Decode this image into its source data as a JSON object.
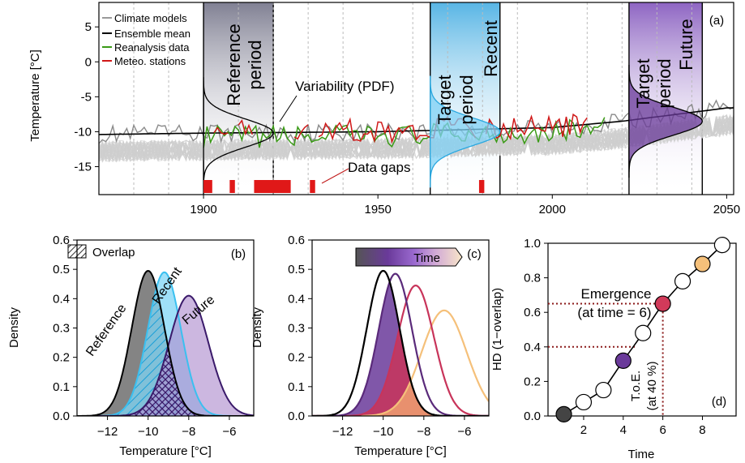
{
  "panels": {
    "a": {
      "label": "(a)"
    },
    "b": {
      "label": "(b)"
    },
    "c": {
      "label": "(c)"
    },
    "d": {
      "label": "(d)"
    }
  },
  "legend_a": [
    {
      "label": "Climate models",
      "color": "#9a9a9a"
    },
    {
      "label": "Ensemble mean",
      "color": "#000000"
    },
    {
      "label": "Reanalysis data",
      "color": "#3a9a16"
    },
    {
      "label": "Meteo. stations",
      "color": "#d01818"
    }
  ],
  "annotations_a": {
    "reference_period": [
      "Reference",
      "period"
    ],
    "target_recent": [
      "Target",
      "period",
      "Recent"
    ],
    "target_future": [
      "Target",
      "period",
      "Future"
    ],
    "variability": "Variability (PDF)",
    "data_gaps": "Data gaps"
  },
  "legend_b": {
    "overlap": "Overlap"
  },
  "labels_b": {
    "reference": "Reference",
    "recent": "Recent",
    "future": "Future"
  },
  "legend_c": {
    "time": "Time"
  },
  "annotations_d": {
    "emergence": [
      "Emergence",
      "(at time = 6)"
    ],
    "toe": [
      "T.o.E.",
      "(at 40 %)"
    ]
  },
  "colors": {
    "reference": "#666666",
    "recent": "#4cc4ee",
    "future": "#5a2a7a",
    "reanalysis": "#3a9a16",
    "stations": "#d01818",
    "emergence_text": "#8b1a1a"
  },
  "chart_data": [
    {
      "panel": "a",
      "type": "line",
      "xlabel": "",
      "ylabel": "Temperature [°C]",
      "xlim": [
        1870,
        2052
      ],
      "ylim": [
        -19,
        8.5
      ],
      "xticks": [
        1900,
        1950,
        2000,
        2050
      ],
      "yticks": [
        5,
        0,
        -5,
        -10,
        -15
      ],
      "series": [
        {
          "name": "Climate models",
          "values_range": [
            -15,
            -7
          ]
        },
        {
          "name": "Ensemble mean",
          "x": [
            1870,
            1900,
            1950,
            2000,
            2020,
            2050
          ],
          "y": [
            -10.4,
            -10.2,
            -10.0,
            -9.4,
            -8.5,
            -6.6
          ]
        },
        {
          "name": "Reanalysis data",
          "x_range": [
            1900,
            2015
          ]
        },
        {
          "name": "Meteo. stations",
          "x_range": [
            1900,
            2010
          ]
        }
      ],
      "periods": [
        {
          "name": "Reference period",
          "x": [
            1900,
            1920
          ]
        },
        {
          "name": "Target period Recent",
          "x": [
            1965,
            1985
          ]
        },
        {
          "name": "Target period Future",
          "x": [
            2022,
            2043
          ]
        }
      ],
      "data_gaps": [
        [
          1900,
          1902.5
        ],
        [
          1907.5,
          1909
        ],
        [
          1914.5,
          1925
        ],
        [
          1930.5,
          1932
        ],
        [
          1979,
          1980.5
        ]
      ]
    },
    {
      "panel": "b",
      "type": "area",
      "xlabel": "Temperature [°C]",
      "ylabel": "Density",
      "xlim": [
        -13.5,
        -4.8
      ],
      "ylim": [
        0,
        0.6
      ],
      "xticks": [
        -12,
        -10,
        -8,
        -6
      ],
      "yticks": [
        0.0,
        0.1,
        0.2,
        0.3,
        0.4,
        0.5,
        0.6
      ],
      "series": [
        {
          "name": "Reference",
          "mean": -10.0,
          "peak": 0.495
        },
        {
          "name": "Recent",
          "mean": -9.2,
          "peak": 0.49
        },
        {
          "name": "Future",
          "mean": -8.0,
          "peak": 0.41
        }
      ]
    },
    {
      "panel": "c",
      "type": "area",
      "xlabel": "Temperature [°C]",
      "ylabel": "Density",
      "xlim": [
        -13.5,
        -4.8
      ],
      "ylim": [
        0,
        0.6
      ],
      "xticks": [
        -12,
        -10,
        -8,
        -6
      ],
      "yticks": [
        0.0,
        0.1,
        0.2,
        0.3,
        0.4,
        0.5,
        0.6
      ],
      "series": [
        {
          "mean": -10.0,
          "peak": 0.495,
          "color": "#000000"
        },
        {
          "mean": -9.4,
          "peak": 0.485,
          "color": "#5a2a7a"
        },
        {
          "mean": -8.4,
          "peak": 0.445,
          "color": "#c8345a"
        },
        {
          "mean": -7.0,
          "peak": 0.36,
          "color": "#f5c07a"
        }
      ]
    },
    {
      "panel": "d",
      "type": "scatter",
      "xlabel": "Time",
      "ylabel": "HD (1−overlap)",
      "xlim": [
        0.2,
        9.7
      ],
      "ylim": [
        0,
        1
      ],
      "xticks": [
        2,
        4,
        6,
        8
      ],
      "yticks": [
        0.0,
        0.2,
        0.4,
        0.6,
        0.8,
        1.0
      ],
      "x": [
        1,
        2,
        3,
        4,
        5,
        6,
        7,
        8,
        9
      ],
      "y": [
        0.01,
        0.08,
        0.15,
        0.32,
        0.48,
        0.65,
        0.78,
        0.88,
        0.99
      ],
      "point_colors": [
        "#444444",
        "#ffffff",
        "#ffffff",
        "#6a3a9a",
        "#ffffff",
        "#d23a5a",
        "#ffffff",
        "#f5c07a",
        "#ffffff"
      ],
      "threshold": 0.4,
      "emergence_time": 6,
      "toe_y": 0.65
    }
  ]
}
